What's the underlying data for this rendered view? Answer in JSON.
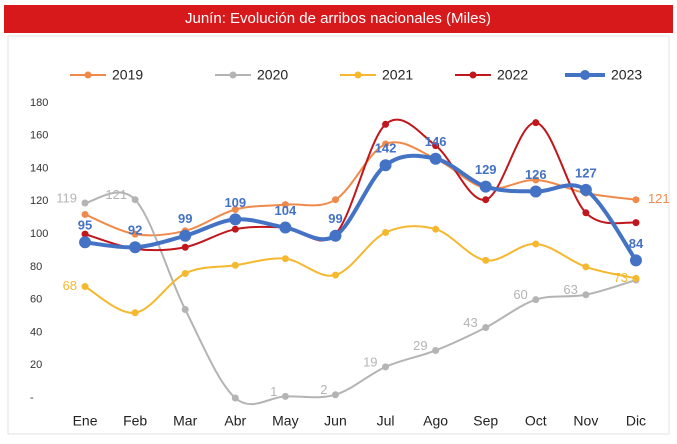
{
  "chart_data": {
    "type": "line",
    "title": "Junín: Evolución de arribos nacionales (Miles)",
    "categories": [
      "Ene",
      "Feb",
      "Mar",
      "Abr",
      "May",
      "Jun",
      "Jul",
      "Ago",
      "Sep",
      "Oct",
      "Nov",
      "Dic"
    ],
    "series": [
      {
        "name": "2019",
        "color": "#f08a4b",
        "values": [
          112,
          100,
          102,
          115,
          118,
          121,
          155,
          146,
          128,
          133,
          125,
          121
        ],
        "value_labels": [
          null,
          null,
          null,
          null,
          null,
          null,
          null,
          null,
          null,
          null,
          null,
          "121"
        ]
      },
      {
        "name": "2020",
        "color": "#b4b4b4",
        "values": [
          119,
          121,
          54,
          0,
          1,
          2,
          19,
          29,
          43,
          60,
          63,
          72
        ],
        "value_labels": [
          "119",
          "121",
          null,
          null,
          "1",
          "2",
          "19",
          "29",
          "43",
          "60",
          "63",
          null
        ]
      },
      {
        "name": "2021",
        "color": "#f5b82e",
        "values": [
          68,
          52,
          76,
          81,
          85,
          75,
          101,
          103,
          84,
          94,
          80,
          73
        ],
        "value_labels": [
          "68",
          null,
          null,
          null,
          null,
          null,
          null,
          null,
          null,
          null,
          null,
          "73"
        ]
      },
      {
        "name": "2022",
        "color": "#c0161c",
        "values": [
          100,
          91,
          92,
          103,
          104,
          100,
          167,
          154,
          121,
          168,
          113,
          107
        ],
        "value_labels": [
          null,
          null,
          null,
          null,
          null,
          null,
          null,
          null,
          null,
          null,
          null,
          null
        ]
      },
      {
        "name": "2023",
        "color": "#4472c4",
        "values": [
          95,
          92,
          99,
          109,
          104,
          99,
          142,
          146,
          129,
          126,
          127,
          84
        ],
        "value_labels": [
          "95",
          "92",
          "99",
          "109",
          "104",
          "99",
          "142",
          "146",
          "129",
          "126",
          "127",
          "84"
        ]
      }
    ],
    "ylim": [
      0,
      180
    ],
    "yticks": [
      {
        "value": 0,
        "label": "-"
      },
      20,
      40,
      60,
      80,
      100,
      120,
      140,
      160,
      180
    ],
    "grid": false,
    "legend": "top"
  }
}
